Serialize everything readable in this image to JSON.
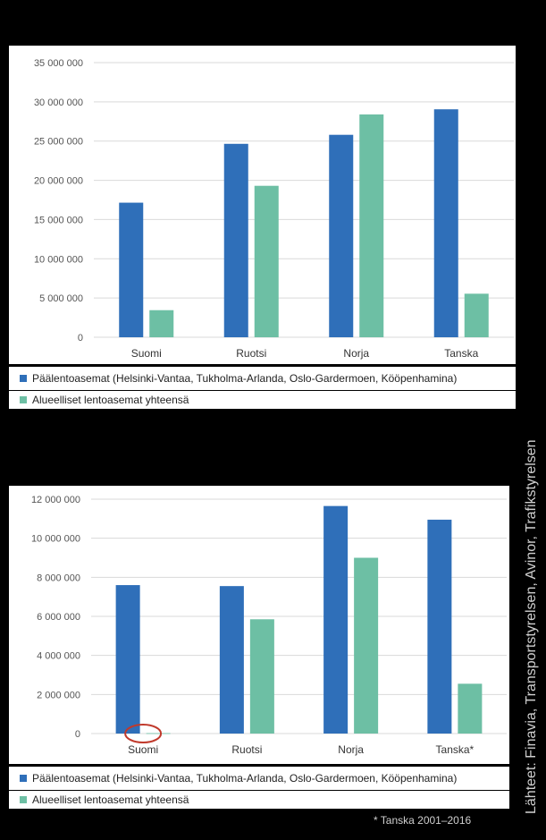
{
  "colors": {
    "main": "#2f6fb9",
    "regional": "#6dbfa4",
    "highlight": "#c0392b",
    "grid": "#d9d9d9"
  },
  "source": "Lähteet: Finavia, Transportstyrelsen, Avinor, Trafikstyrelsen",
  "footnote": "* Tanska 2001–2016",
  "chart_data": [
    {
      "type": "bar",
      "categories": [
        "Suomi",
        "Ruotsi",
        "Norja",
        "Tanska"
      ],
      "series": [
        {
          "name": "Päälentoasemat (Helsinki-Vantaa, Tukholma-Arlanda, Oslo-Gardermoen, Kööpenhamina)",
          "values": [
            17150000,
            24650000,
            25800000,
            29050000
          ]
        },
        {
          "name": "Alueelliset lentoasemat yhteensä",
          "values": [
            3450000,
            19300000,
            28400000,
            5550000
          ]
        }
      ],
      "yticks": [
        "0",
        "5 000 000",
        "10 000 000",
        "15 000 000",
        "20 000 000",
        "25 000 000",
        "30 000 000",
        "35 000 000"
      ],
      "ylim": [
        0,
        35000000
      ],
      "grid": true,
      "legend": "bottom"
    },
    {
      "type": "bar",
      "categories": [
        "Suomi",
        "Ruotsi",
        "Norja",
        "Tanska*"
      ],
      "series": [
        {
          "name": "Päälentoasemat (Helsinki-Vantaa, Tukholma-Arlanda, Oslo-Gardermoen, Kööpenhamina)",
          "values": [
            7600000,
            7550000,
            11650000,
            10950000
          ]
        },
        {
          "name": "Alueelliset lentoasemat yhteensä",
          "values": [
            20000,
            5850000,
            9000000,
            2550000
          ]
        }
      ],
      "yticks": [
        "0",
        "2 000 000",
        "4 000 000",
        "6 000 000",
        "8 000 000",
        "10 000 000",
        "12 000 000"
      ],
      "ylim": [
        0,
        12000000
      ],
      "grid": true,
      "legend": "bottom",
      "highlighted_category": "Suomi"
    }
  ]
}
